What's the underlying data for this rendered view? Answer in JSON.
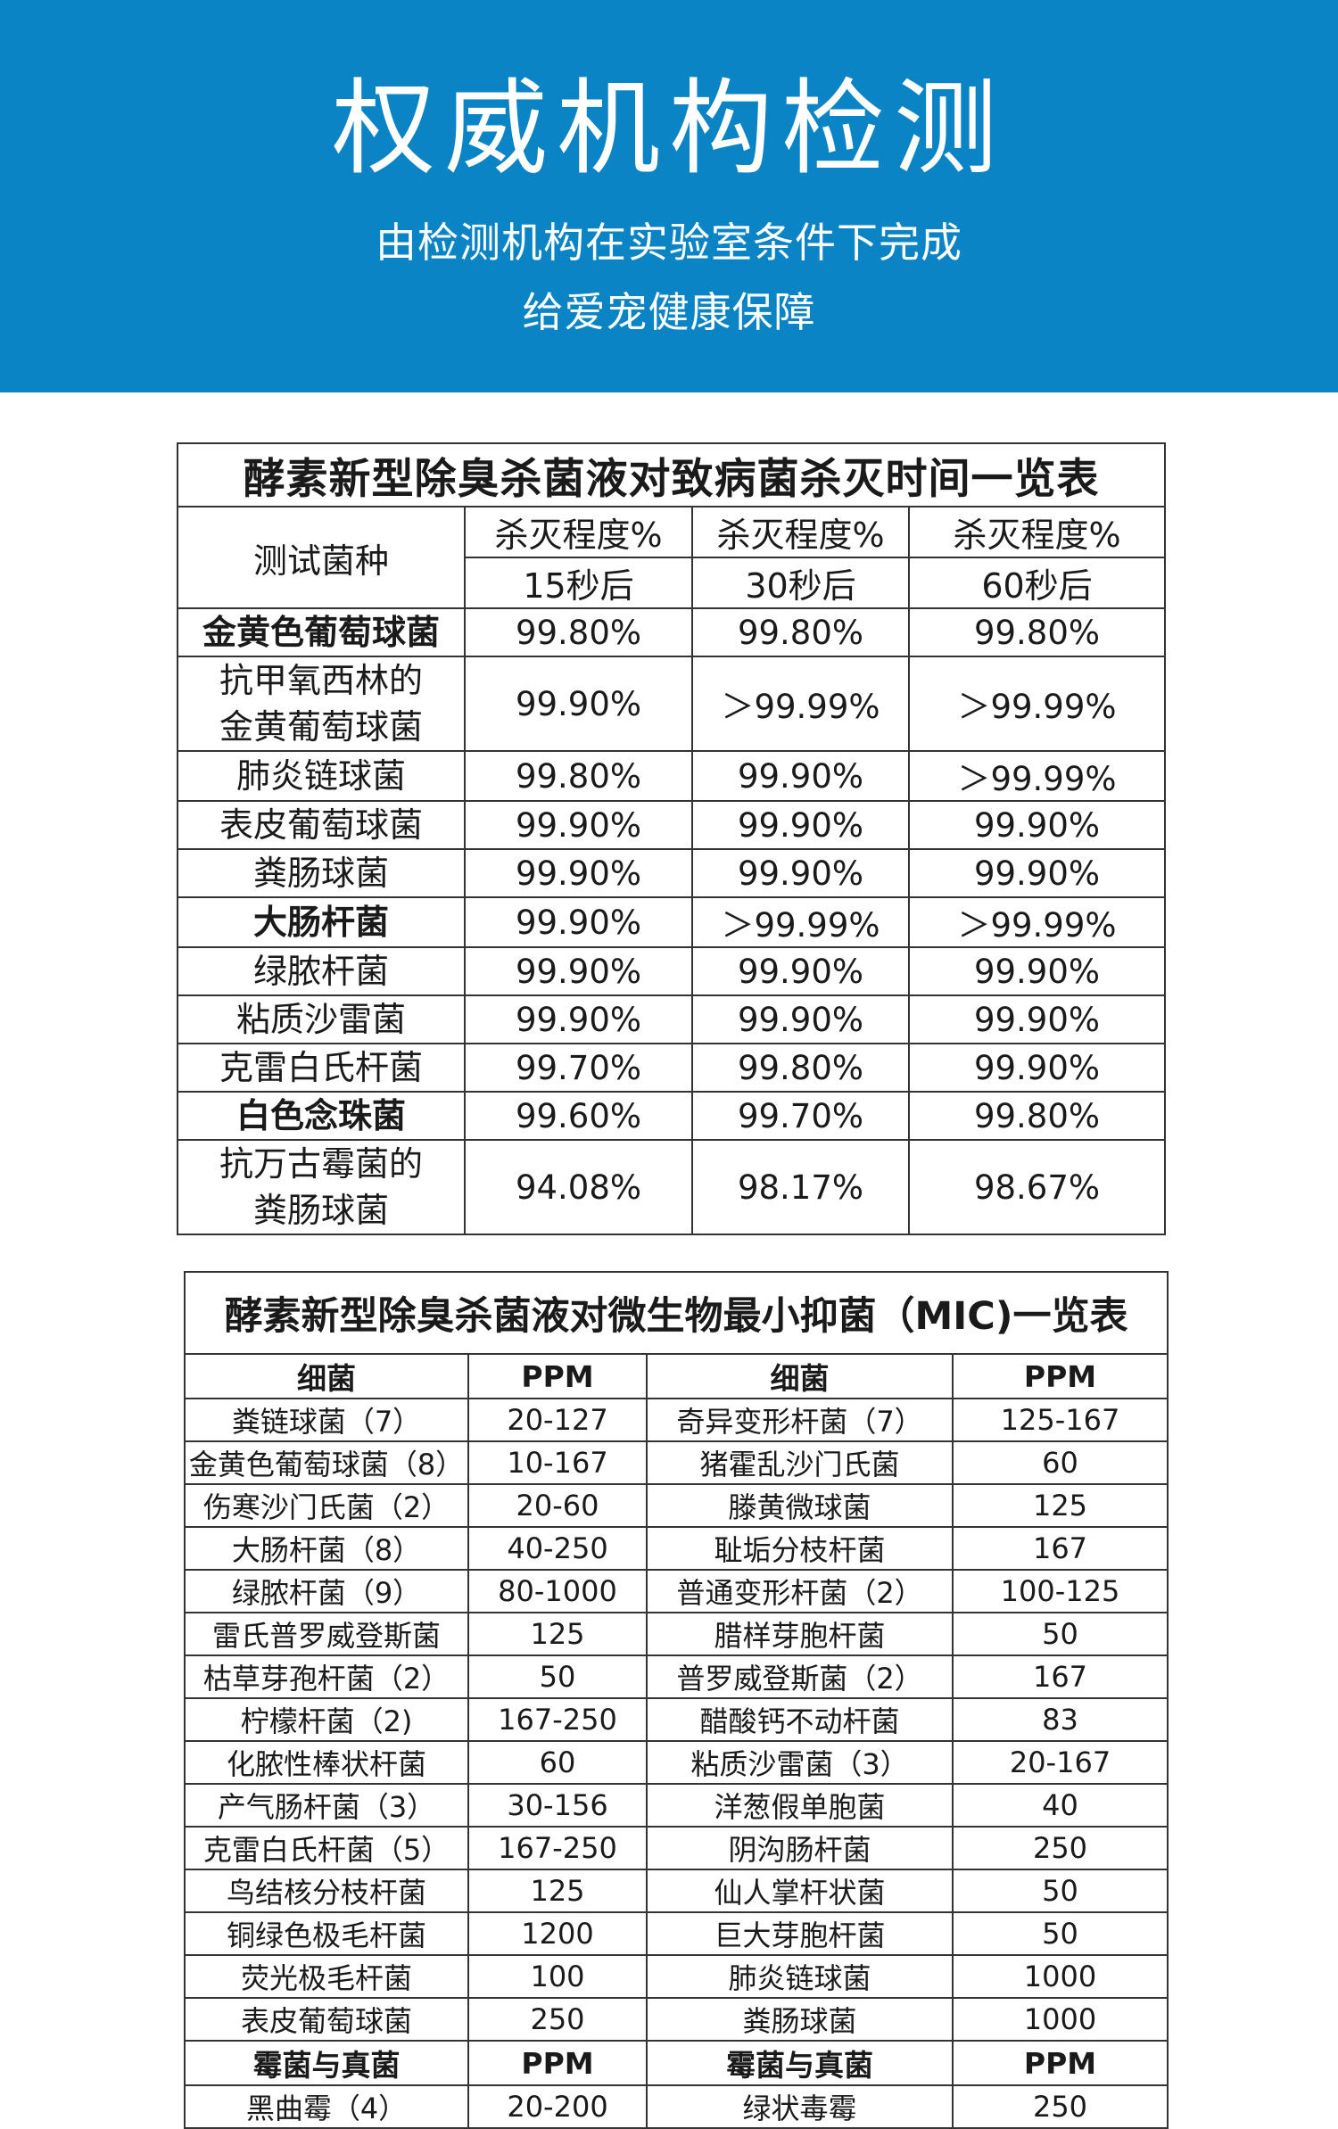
{
  "banner": {
    "title": "权威机构检测",
    "subtitle1": "由检测机构在实验室条件下完成",
    "subtitle2": "给爱宠健康保障",
    "background": "#0b84c6"
  },
  "kill_table": {
    "caption": "酵素新型除臭杀菌液对致病菌杀灭时间一览表",
    "header_label": "测试菌种",
    "degree_label": "杀灭程度%",
    "times": [
      "15秒后",
      "30秒后",
      "60秒后"
    ],
    "rows": [
      {
        "name": "金黄色葡萄球菌",
        "bold": true,
        "tall": false,
        "v15": "99.80%",
        "v30": "99.80%",
        "v60": "99.80%"
      },
      {
        "name": "抗甲氧西林的\n金黄葡萄球菌",
        "bold": false,
        "tall": true,
        "v15": "99.90%",
        "v30": "＞99.99%",
        "v60": "＞99.99%"
      },
      {
        "name": "肺炎链球菌",
        "bold": false,
        "tall": false,
        "v15": "99.80%",
        "v30": "99.90%",
        "v60": "＞99.99%"
      },
      {
        "name": "表皮葡萄球菌",
        "bold": false,
        "tall": false,
        "v15": "99.90%",
        "v30": "99.90%",
        "v60": "99.90%"
      },
      {
        "name": "粪肠球菌",
        "bold": false,
        "tall": false,
        "v15": "99.90%",
        "v30": "99.90%",
        "v60": "99.90%"
      },
      {
        "name": "大肠杆菌",
        "bold": true,
        "tall": false,
        "v15": "99.90%",
        "v30": "＞99.99%",
        "v60": "＞99.99%"
      },
      {
        "name": "绿脓杆菌",
        "bold": false,
        "tall": false,
        "v15": "99.90%",
        "v30": "99.90%",
        "v60": "99.90%"
      },
      {
        "name": "粘质沙雷菌",
        "bold": false,
        "tall": false,
        "v15": "99.90%",
        "v30": "99.90%",
        "v60": "99.90%"
      },
      {
        "name": "克雷白氏杆菌",
        "bold": false,
        "tall": false,
        "v15": "99.70%",
        "v30": "99.80%",
        "v60": "99.90%"
      },
      {
        "name": "白色念珠菌",
        "bold": true,
        "tall": false,
        "v15": "99.60%",
        "v30": "99.70%",
        "v60": "99.80%"
      },
      {
        "name": "抗万古霉菌的\n粪肠球菌",
        "bold": false,
        "tall": true,
        "v15": "94.08%",
        "v30": "98.17%",
        "v60": "98.67%"
      }
    ]
  },
  "mic_table": {
    "caption": "酵素新型除臭杀菌液对微生物最小抑菌（MIC)一览表",
    "header": {
      "col1": "细菌",
      "col2": "PPM",
      "col3": "细菌",
      "col4": "PPM"
    },
    "rows": [
      {
        "a": "粪链球菌（7）",
        "ap": "20-127",
        "b": "奇异变形杆菌（7）",
        "bp": "125-167"
      },
      {
        "a": "金黄色葡萄球菌（8）",
        "ap": "10-167",
        "b": "猪霍乱沙门氏菌",
        "bp": "60"
      },
      {
        "a": "伤寒沙门氏菌（2）",
        "ap": "20-60",
        "b": "滕黄微球菌",
        "bp": "125"
      },
      {
        "a": "大肠杆菌（8）",
        "ap": "40-250",
        "b": "耻垢分枝杆菌",
        "bp": "167"
      },
      {
        "a": "绿脓杆菌（9）",
        "ap": "80-1000",
        "b": "普通变形杆菌（2）",
        "bp": "100-125"
      },
      {
        "a": "雷氏普罗威登斯菌",
        "ap": "125",
        "b": "腊样芽胞杆菌",
        "bp": "50"
      },
      {
        "a": "枯草芽孢杆菌（2）",
        "ap": "50",
        "b": "普罗威登斯菌（2）",
        "bp": "167"
      },
      {
        "a": "柠檬杆菌（2)",
        "ap": "167-250",
        "b": "醋酸钙不动杆菌",
        "bp": "83"
      },
      {
        "a": "化脓性棒状杆菌",
        "ap": "60",
        "b": "粘质沙雷菌（3）",
        "bp": "20-167"
      },
      {
        "a": "产气肠杆菌（3）",
        "ap": "30-156",
        "b": "洋葱假单胞菌",
        "bp": "40"
      },
      {
        "a": "克雷白氏杆菌（5）",
        "ap": "167-250",
        "b": "阴沟肠杆菌",
        "bp": "250"
      },
      {
        "a": "鸟结核分枝杆菌",
        "ap": "125",
        "b": "仙人掌杆状菌",
        "bp": "50"
      },
      {
        "a": "铜绿色极毛杆菌",
        "ap": "1200",
        "b": "巨大芽胞杆菌",
        "bp": "50"
      },
      {
        "a": "荧光极毛杆菌",
        "ap": "100",
        "b": "肺炎链球菌",
        "bp": "1000"
      },
      {
        "a": "表皮葡萄球菌",
        "ap": "250",
        "b": "粪肠球菌",
        "bp": "1000"
      }
    ],
    "fungi_header": {
      "col1": "霉菌与真菌",
      "col2": "PPM",
      "col3": "霉菌与真菌",
      "col4": "PPM"
    },
    "fungi_rows": [
      {
        "a": "黑曲霉（4）",
        "ap": "20-200",
        "b": "绿状毒霉",
        "bp": "250"
      }
    ]
  }
}
